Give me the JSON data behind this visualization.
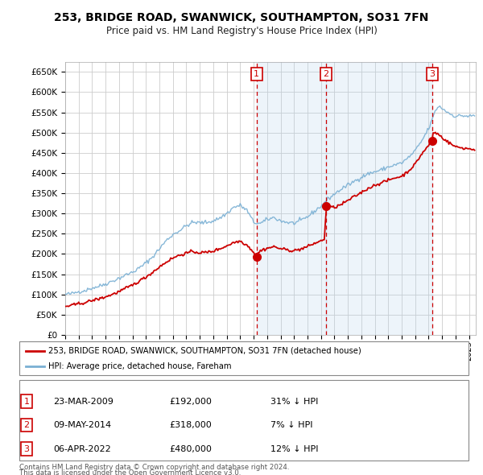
{
  "title": "253, BRIDGE ROAD, SWANWICK, SOUTHAMPTON, SO31 7FN",
  "subtitle": "Price paid vs. HM Land Registry's House Price Index (HPI)",
  "title_fontsize": 10,
  "subtitle_fontsize": 8.5,
  "ylabel_ticks": [
    0,
    50000,
    100000,
    150000,
    200000,
    250000,
    300000,
    350000,
    400000,
    450000,
    500000,
    550000,
    600000,
    650000
  ],
  "ylabel_labels": [
    "£0",
    "£50K",
    "£100K",
    "£150K",
    "£200K",
    "£250K",
    "£300K",
    "£350K",
    "£400K",
    "£450K",
    "£500K",
    "£550K",
    "£600K",
    "£650K"
  ],
  "ylim": [
    0,
    675000
  ],
  "xlim_start": 1995.0,
  "xlim_end": 2025.5,
  "sales": [
    {
      "num": 1,
      "date_str": "23-MAR-2009",
      "date_num": 2009.22,
      "price": 192000,
      "pct": "31%",
      "direction": "↓"
    },
    {
      "num": 2,
      "date_str": "09-MAY-2014",
      "date_num": 2014.36,
      "price": 318000,
      "pct": "7%",
      "direction": "↓"
    },
    {
      "num": 3,
      "date_str": "06-APR-2022",
      "date_num": 2022.27,
      "price": 480000,
      "pct": "12%",
      "direction": "↓"
    }
  ],
  "sale_label_color": "#cc0000",
  "sale_vline_color": "#cc0000",
  "sale_vline_style": "--",
  "shade_color": "#ddeeff",
  "hpi_line_color": "#7ab0d4",
  "price_line_color": "#cc0000",
  "grid_color": "#cccccc",
  "background_color": "#ffffff",
  "legend_label_red": "253, BRIDGE ROAD, SWANWICK, SOUTHAMPTON, SO31 7FN (detached house)",
  "legend_label_blue": "HPI: Average price, detached house, Fareham",
  "footer_line1": "Contains HM Land Registry data © Crown copyright and database right 2024.",
  "footer_line2": "This data is licensed under the Open Government Licence v3.0.",
  "table_rows": [
    [
      "1",
      "23-MAR-2009",
      "£192,000",
      "31% ↓ HPI"
    ],
    [
      "2",
      "09-MAY-2014",
      "£318,000",
      "7% ↓ HPI"
    ],
    [
      "3",
      "06-APR-2022",
      "£480,000",
      "12% ↓ HPI"
    ]
  ],
  "hpi_anchors": [
    [
      1995.0,
      100000
    ],
    [
      1995.5,
      102000
    ],
    [
      1996.0,
      107000
    ],
    [
      1996.5,
      110000
    ],
    [
      1997.0,
      116000
    ],
    [
      1997.5,
      120000
    ],
    [
      1998.0,
      126000
    ],
    [
      1998.5,
      133000
    ],
    [
      1999.0,
      140000
    ],
    [
      1999.5,
      148000
    ],
    [
      2000.0,
      155000
    ],
    [
      2000.5,
      165000
    ],
    [
      2001.0,
      178000
    ],
    [
      2001.5,
      193000
    ],
    [
      2002.0,
      213000
    ],
    [
      2002.5,
      233000
    ],
    [
      2003.0,
      248000
    ],
    [
      2003.5,
      258000
    ],
    [
      2004.0,
      270000
    ],
    [
      2004.5,
      278000
    ],
    [
      2005.0,
      277000
    ],
    [
      2005.5,
      278000
    ],
    [
      2006.0,
      282000
    ],
    [
      2006.5,
      289000
    ],
    [
      2007.0,
      300000
    ],
    [
      2007.5,
      315000
    ],
    [
      2008.0,
      320000
    ],
    [
      2008.5,
      308000
    ],
    [
      2009.0,
      278000
    ],
    [
      2009.5,
      275000
    ],
    [
      2010.0,
      285000
    ],
    [
      2010.5,
      290000
    ],
    [
      2011.0,
      282000
    ],
    [
      2011.5,
      278000
    ],
    [
      2012.0,
      276000
    ],
    [
      2012.5,
      282000
    ],
    [
      2013.0,
      292000
    ],
    [
      2013.5,
      305000
    ],
    [
      2014.0,
      318000
    ],
    [
      2014.5,
      335000
    ],
    [
      2015.0,
      348000
    ],
    [
      2015.5,
      360000
    ],
    [
      2016.0,
      370000
    ],
    [
      2016.5,
      380000
    ],
    [
      2017.0,
      390000
    ],
    [
      2017.5,
      398000
    ],
    [
      2018.0,
      403000
    ],
    [
      2018.5,
      408000
    ],
    [
      2019.0,
      415000
    ],
    [
      2019.5,
      420000
    ],
    [
      2020.0,
      425000
    ],
    [
      2020.5,
      438000
    ],
    [
      2021.0,
      455000
    ],
    [
      2021.5,
      480000
    ],
    [
      2022.0,
      510000
    ],
    [
      2022.25,
      530000
    ],
    [
      2022.5,
      555000
    ],
    [
      2022.75,
      565000
    ],
    [
      2023.0,
      560000
    ],
    [
      2023.5,
      548000
    ],
    [
      2024.0,
      540000
    ],
    [
      2024.5,
      542000
    ],
    [
      2025.0,
      540000
    ],
    [
      2025.4,
      542000
    ]
  ],
  "price_anchors": [
    [
      1995.0,
      70000
    ],
    [
      1995.5,
      73000
    ],
    [
      1996.0,
      77000
    ],
    [
      1996.5,
      80000
    ],
    [
      1997.0,
      85000
    ],
    [
      1997.5,
      89000
    ],
    [
      1998.0,
      94000
    ],
    [
      1998.5,
      100000
    ],
    [
      1999.0,
      107000
    ],
    [
      1999.5,
      115000
    ],
    [
      2000.0,
      123000
    ],
    [
      2000.5,
      133000
    ],
    [
      2001.0,
      143000
    ],
    [
      2001.5,
      155000
    ],
    [
      2002.0,
      168000
    ],
    [
      2002.5,
      180000
    ],
    [
      2003.0,
      190000
    ],
    [
      2003.5,
      197000
    ],
    [
      2004.0,
      202000
    ],
    [
      2004.5,
      206000
    ],
    [
      2005.0,
      203000
    ],
    [
      2005.5,
      204000
    ],
    [
      2006.0,
      207000
    ],
    [
      2006.5,
      213000
    ],
    [
      2007.0,
      220000
    ],
    [
      2007.5,
      228000
    ],
    [
      2008.0,
      232000
    ],
    [
      2008.5,
      222000
    ],
    [
      2009.0,
      205000
    ],
    [
      2009.15,
      193000
    ],
    [
      2009.22,
      192000
    ],
    [
      2009.3,
      200000
    ],
    [
      2009.5,
      208000
    ],
    [
      2010.0,
      214000
    ],
    [
      2010.5,
      218000
    ],
    [
      2011.0,
      213000
    ],
    [
      2011.5,
      210000
    ],
    [
      2012.0,
      208000
    ],
    [
      2012.5,
      212000
    ],
    [
      2013.0,
      218000
    ],
    [
      2013.5,
      226000
    ],
    [
      2014.0,
      232000
    ],
    [
      2014.3,
      238000
    ],
    [
      2014.36,
      318000
    ],
    [
      2014.4,
      318000
    ],
    [
      2014.5,
      316000
    ],
    [
      2015.0,
      315000
    ],
    [
      2015.5,
      322000
    ],
    [
      2016.0,
      332000
    ],
    [
      2016.5,
      342000
    ],
    [
      2017.0,
      352000
    ],
    [
      2017.5,
      362000
    ],
    [
      2018.0,
      370000
    ],
    [
      2018.5,
      376000
    ],
    [
      2019.0,
      382000
    ],
    [
      2019.5,
      388000
    ],
    [
      2020.0,
      392000
    ],
    [
      2020.5,
      405000
    ],
    [
      2021.0,
      422000
    ],
    [
      2021.5,
      448000
    ],
    [
      2022.0,
      468000
    ],
    [
      2022.2,
      479000
    ],
    [
      2022.27,
      480000
    ],
    [
      2022.3,
      498000
    ],
    [
      2022.5,
      500000
    ],
    [
      2022.75,
      495000
    ],
    [
      2023.0,
      488000
    ],
    [
      2023.5,
      475000
    ],
    [
      2024.0,
      465000
    ],
    [
      2024.5,
      462000
    ],
    [
      2025.0,
      460000
    ],
    [
      2025.4,
      458000
    ]
  ]
}
